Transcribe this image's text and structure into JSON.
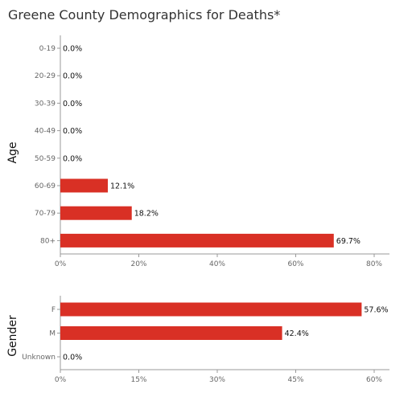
{
  "title": "Greene County Demographics for Deaths*",
  "chart_data": [
    {
      "type": "bar",
      "orientation": "horizontal",
      "ylabel": "Age",
      "categories": [
        "0-19",
        "20-29",
        "30-39",
        "40-49",
        "50-59",
        "60-69",
        "70-79",
        "80+"
      ],
      "values": [
        0.0,
        0.0,
        0.0,
        0.0,
        0.0,
        12.1,
        18.2,
        69.7
      ],
      "value_labels": [
        "0.0%",
        "0.0%",
        "0.0%",
        "0.0%",
        "0.0%",
        "12.1%",
        "18.2%",
        "69.7%"
      ],
      "xlim": [
        0,
        80
      ],
      "xticks": [
        "0%",
        "20%",
        "40%",
        "60%",
        "80%"
      ],
      "color": "#d93025",
      "grid": false
    },
    {
      "type": "bar",
      "orientation": "horizontal",
      "ylabel": "Gender",
      "categories": [
        "F",
        "M",
        "Unknown"
      ],
      "values": [
        57.6,
        42.4,
        0.0
      ],
      "value_labels": [
        "57.6%",
        "42.4%",
        "0.0%"
      ],
      "xlim": [
        0,
        60
      ],
      "xticks": [
        "0%",
        "15%",
        "30%",
        "45%",
        "60%"
      ],
      "color": "#d93025",
      "grid": false
    }
  ]
}
